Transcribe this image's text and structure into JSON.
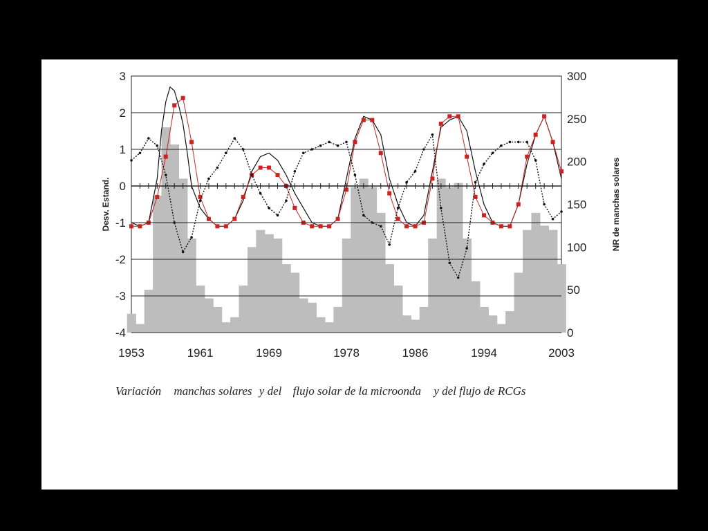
{
  "colors": {
    "background": "#000000",
    "panel": "#ffffff",
    "sunspot_bars": "#bdbdbd",
    "microwave_flux": "#cc2222",
    "rcg_flux": "#111111",
    "grid": "#222222"
  },
  "caption": {
    "part1": "Variación",
    "part2": "manchas solares",
    "part3": "y del",
    "part4": "flujo solar de la microonda",
    "part5": "y del flujo de RCGs"
  },
  "chart_data": {
    "type": "area",
    "title": "",
    "xlabel": "",
    "ylabel_left": "Desv. Estand.",
    "ylabel_right": "NR de manchas solares",
    "xlim": [
      1953,
      2003
    ],
    "ylim_left": [
      -4,
      3
    ],
    "ylim_right": [
      0,
      300
    ],
    "x_ticks": [
      "1953",
      "1961",
      "1969",
      "1978",
      "1986",
      "1994",
      "2003"
    ],
    "y_left_ticks": [
      "3",
      "2",
      "1",
      "0",
      "-1",
      "-2",
      "-3",
      "-4"
    ],
    "y_right_ticks": [
      "300",
      "250",
      "200",
      "150",
      "100",
      "50",
      "0"
    ],
    "grid": "horizontal",
    "series": [
      {
        "kind": "bars",
        "axis": "right",
        "x": [
          1953.0,
          1954.0,
          1955.0,
          1956.0,
          1957.0,
          1958.0,
          1959.0,
          1960.0,
          1961.0,
          1962.0,
          1963.0,
          1964.0,
          1965.0,
          1966.0,
          1967.0,
          1968.0,
          1969.0,
          1970.0,
          1971.0,
          1972.0,
          1973.0,
          1974.0,
          1975.0,
          1976.0,
          1977.0,
          1978.0,
          1979.0,
          1980.0,
          1981.0,
          1982.0,
          1983.0,
          1984.0,
          1985.0,
          1986.0,
          1987.0,
          1988.0,
          1989.0,
          1990.0,
          1991.0,
          1992.0,
          1993.0,
          1994.0,
          1995.0,
          1996.0,
          1997.0,
          1998.0,
          1999.0,
          2000.0,
          2001.0,
          2002.0,
          2003.0
        ],
        "values": [
          22,
          10,
          50,
          160,
          240,
          220,
          180,
          110,
          55,
          40,
          30,
          12,
          18,
          55,
          100,
          120,
          115,
          110,
          80,
          70,
          40,
          35,
          18,
          12,
          30,
          110,
          170,
          180,
          170,
          140,
          80,
          55,
          20,
          15,
          30,
          110,
          180,
          170,
          175,
          110,
          60,
          30,
          20,
          10,
          25,
          70,
          120,
          140,
          125,
          120,
          80
        ]
      },
      {
        "kind": "line",
        "axis": "left",
        "x": [
          1953.0,
          1954.0,
          1955.0,
          1955.5,
          1956.0,
          1956.5,
          1957.0,
          1957.5,
          1958.0,
          1958.5,
          1959.0,
          1959.5,
          1960.0,
          1961.0,
          1962.0,
          1963.0,
          1964.0,
          1965.0,
          1966.0,
          1967.0,
          1968.0,
          1969.0,
          1970.0,
          1971.0,
          1972.0,
          1973.0,
          1974.0,
          1975.0,
          1976.0,
          1977.0,
          1978.0,
          1979.0,
          1980.0,
          1981.0,
          1982.0,
          1983.0,
          1984.0,
          1985.0,
          1986.0,
          1987.0,
          1988.0,
          1989.0,
          1990.0,
          1991.0,
          1992.0,
          1993.0,
          1994.0,
          1995.0,
          1996.0,
          1997.0,
          1998.0,
          1999.0,
          2000.0,
          2001.0,
          2002.0,
          2003.0
        ],
        "values": [
          -1.0,
          -1.1,
          -1.0,
          -0.4,
          0.2,
          1.5,
          2.3,
          2.7,
          2.6,
          2.2,
          1.7,
          0.9,
          0.0,
          -0.6,
          -0.9,
          -1.1,
          -1.1,
          -0.9,
          -0.4,
          0.4,
          0.8,
          0.9,
          0.7,
          0.3,
          -0.2,
          -0.6,
          -1.0,
          -1.1,
          -1.1,
          -0.9,
          0.2,
          1.3,
          1.9,
          1.8,
          1.4,
          0.2,
          -0.5,
          -1.0,
          -1.1,
          -0.8,
          0.4,
          1.6,
          1.8,
          1.9,
          1.5,
          0.4,
          -0.5,
          -1.0,
          -1.1,
          -1.1,
          -0.5,
          0.6,
          1.4,
          1.9,
          1.2,
          0.2
        ]
      },
      {
        "kind": "markers",
        "axis": "left",
        "x": [
          1953.0,
          1954.0,
          1955.0,
          1956.0,
          1957.0,
          1958.0,
          1959.0,
          1960.0,
          1961.0,
          1962.0,
          1963.0,
          1964.0,
          1965.0,
          1966.0,
          1967.0,
          1968.0,
          1969.0,
          1970.0,
          1971.0,
          1972.0,
          1973.0,
          1974.0,
          1975.0,
          1976.0,
          1977.0,
          1978.0,
          1979.0,
          1980.0,
          1981.0,
          1982.0,
          1983.0,
          1984.0,
          1985.0,
          1986.0,
          1987.0,
          1988.0,
          1989.0,
          1990.0,
          1991.0,
          1992.0,
          1993.0,
          1994.0,
          1995.0,
          1996.0,
          1997.0,
          1998.0,
          1999.0,
          2000.0,
          2001.0,
          2002.0,
          2003.0
        ],
        "values": [
          -1.1,
          -1.1,
          -1.0,
          -0.3,
          0.8,
          2.2,
          2.4,
          1.2,
          -0.3,
          -0.9,
          -1.1,
          -1.1,
          -0.9,
          -0.3,
          0.3,
          0.5,
          0.5,
          0.3,
          0.0,
          -0.6,
          -1.0,
          -1.1,
          -1.1,
          -1.1,
          -0.9,
          -0.1,
          1.2,
          1.8,
          1.8,
          0.9,
          -0.2,
          -0.9,
          -1.1,
          -1.1,
          -1.0,
          0.2,
          1.7,
          1.9,
          1.9,
          0.8,
          -0.3,
          -0.8,
          -1.0,
          -1.1,
          -1.1,
          -0.5,
          0.8,
          1.4,
          1.9,
          1.2,
          0.4
        ]
      },
      {
        "kind": "dotted_line",
        "axis": "left",
        "x": [
          1953.0,
          1954.0,
          1955.0,
          1956.0,
          1957.0,
          1958.0,
          1959.0,
          1960.0,
          1961.0,
          1962.0,
          1963.0,
          1964.0,
          1965.0,
          1966.0,
          1967.0,
          1968.0,
          1969.0,
          1970.0,
          1971.0,
          1972.0,
          1973.0,
          1974.0,
          1975.0,
          1976.0,
          1977.0,
          1978.0,
          1979.0,
          1980.0,
          1981.0,
          1982.0,
          1983.0,
          1984.0,
          1985.0,
          1986.0,
          1987.0,
          1988.0,
          1989.0,
          1990.0,
          1991.0,
          1992.0,
          1993.0,
          1994.0,
          1995.0,
          1996.0,
          1997.0,
          1998.0,
          1999.0,
          2000.0,
          2001.0,
          2002.0,
          2003.0
        ],
        "values": [
          0.7,
          0.9,
          1.3,
          1.1,
          0.3,
          -1.0,
          -1.8,
          -1.4,
          -0.4,
          0.2,
          0.5,
          0.9,
          1.3,
          1.0,
          0.3,
          -0.2,
          -0.6,
          -0.8,
          -0.4,
          0.4,
          0.9,
          1.0,
          1.1,
          1.2,
          1.1,
          1.2,
          0.3,
          -0.8,
          -1.0,
          -1.1,
          -1.6,
          -0.6,
          0.1,
          0.4,
          1.0,
          1.4,
          -0.6,
          -2.1,
          -2.5,
          -1.7,
          0.1,
          0.6,
          0.9,
          1.1,
          1.2,
          1.2,
          1.2,
          0.7,
          -0.5,
          -0.9,
          -0.7
        ]
      }
    ]
  }
}
